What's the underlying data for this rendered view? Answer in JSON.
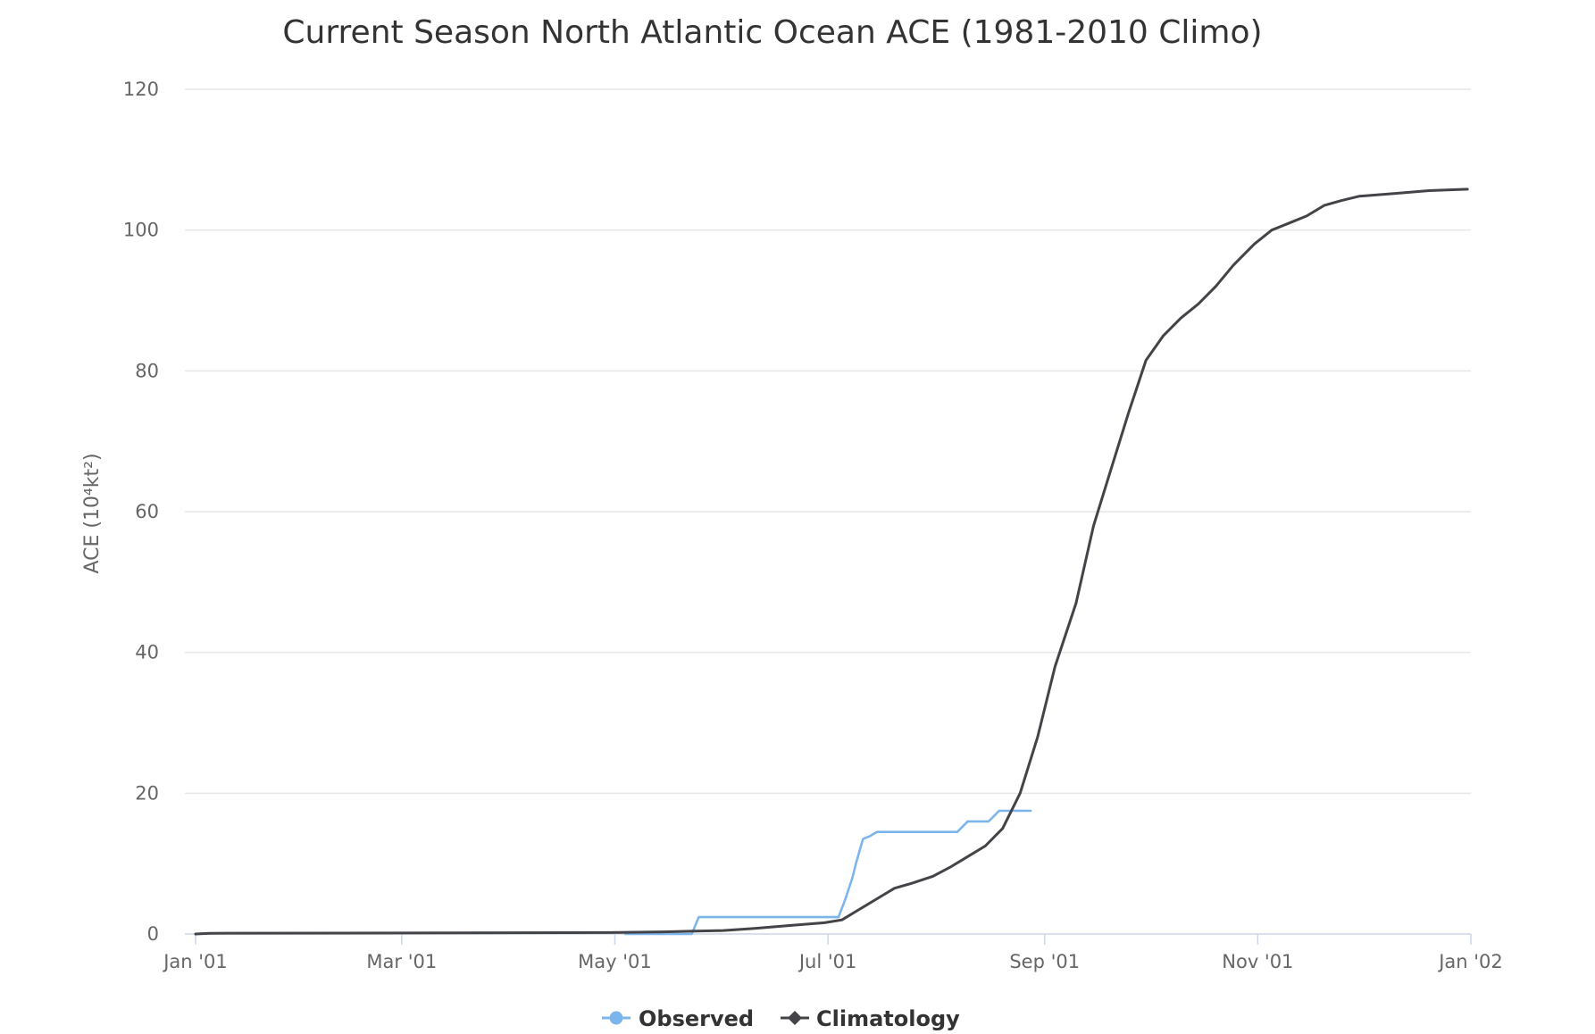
{
  "chart_data": {
    "type": "line",
    "title": "Current Season North Atlantic Ocean ACE (1981-2010 Climo)",
    "ylabel": "ACE (10⁴kt²)",
    "xlabel": "",
    "ylim": [
      0,
      120
    ],
    "y_ticks": [
      0,
      20,
      40,
      60,
      80,
      100,
      120
    ],
    "x_ticks": [
      {
        "label": "Jan '01",
        "date": "2001-01-01"
      },
      {
        "label": "Mar '01",
        "date": "2001-03-01"
      },
      {
        "label": "May '01",
        "date": "2001-05-01"
      },
      {
        "label": "Jul '01",
        "date": "2001-07-01"
      },
      {
        "label": "Sep '01",
        "date": "2001-09-01"
      },
      {
        "label": "Nov '01",
        "date": "2001-11-01"
      },
      {
        "label": "Jan '02",
        "date": "2002-01-01"
      }
    ],
    "xlim": [
      "2001-01-01",
      "2002-01-01"
    ],
    "grid": true,
    "legend_position": "bottom-center",
    "series": [
      {
        "name": "Observed",
        "color": "#7cb5ec",
        "marker": "circle",
        "points": [
          [
            "2001-05-04",
            0
          ],
          [
            "2001-05-23",
            0
          ],
          [
            "2001-05-25",
            2.4
          ],
          [
            "2001-07-04",
            2.4
          ],
          [
            "2001-07-06",
            5
          ],
          [
            "2001-07-08",
            8
          ],
          [
            "2001-07-09",
            10
          ],
          [
            "2001-07-11",
            13.5
          ],
          [
            "2001-07-13",
            13.9
          ],
          [
            "2001-07-15",
            14.5
          ],
          [
            "2001-08-07",
            14.5
          ],
          [
            "2001-08-10",
            16
          ],
          [
            "2001-08-16",
            16
          ],
          [
            "2001-08-19",
            17.5
          ],
          [
            "2001-08-28",
            17.5
          ]
        ]
      },
      {
        "name": "Climatology",
        "color": "#434348",
        "marker": "diamond",
        "points": [
          [
            "2001-01-01",
            0
          ],
          [
            "2001-01-05",
            0.1
          ],
          [
            "2001-04-30",
            0.2
          ],
          [
            "2001-05-15",
            0.3
          ],
          [
            "2001-06-01",
            0.5
          ],
          [
            "2001-06-10",
            0.8
          ],
          [
            "2001-06-20",
            1.2
          ],
          [
            "2001-06-30",
            1.6
          ],
          [
            "2001-07-05",
            2
          ],
          [
            "2001-07-10",
            3.5
          ],
          [
            "2001-07-15",
            5
          ],
          [
            "2001-07-20",
            6.5
          ],
          [
            "2001-07-25",
            7.2
          ],
          [
            "2001-07-31",
            8.2
          ],
          [
            "2001-08-05",
            9.5
          ],
          [
            "2001-08-10",
            11
          ],
          [
            "2001-08-15",
            12.5
          ],
          [
            "2001-08-20",
            15
          ],
          [
            "2001-08-25",
            20
          ],
          [
            "2001-08-30",
            28
          ],
          [
            "2001-09-04",
            38
          ],
          [
            "2001-09-10",
            47
          ],
          [
            "2001-09-15",
            58
          ],
          [
            "2001-09-20",
            66
          ],
          [
            "2001-09-25",
            74
          ],
          [
            "2001-09-30",
            81.5
          ],
          [
            "2001-10-05",
            85
          ],
          [
            "2001-10-10",
            87.5
          ],
          [
            "2001-10-15",
            89.5
          ],
          [
            "2001-10-20",
            92
          ],
          [
            "2001-10-25",
            95
          ],
          [
            "2001-10-31",
            98
          ],
          [
            "2001-11-05",
            100
          ],
          [
            "2001-11-10",
            101
          ],
          [
            "2001-11-15",
            102
          ],
          [
            "2001-11-20",
            103.5
          ],
          [
            "2001-11-25",
            104.2
          ],
          [
            "2001-11-30",
            104.8
          ],
          [
            "2001-12-10",
            105.2
          ],
          [
            "2001-12-20",
            105.6
          ],
          [
            "2001-12-31",
            105.8
          ]
        ]
      }
    ]
  }
}
